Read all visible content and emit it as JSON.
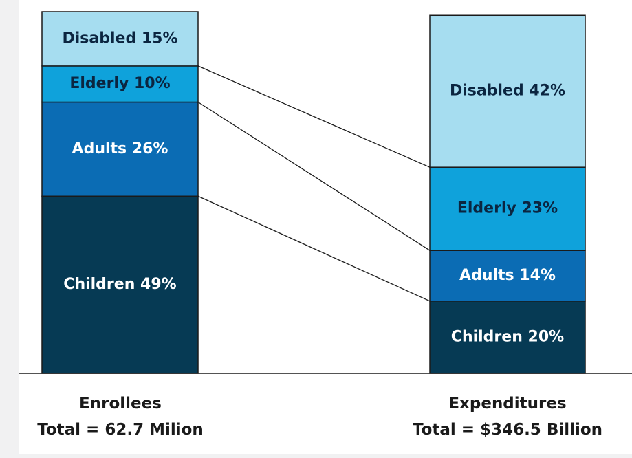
{
  "chart_data": {
    "type": "bar",
    "stacked": true,
    "normalized_percent": true,
    "categories": [
      "Enrollees",
      "Expenditures"
    ],
    "totals": [
      "Total = 62.7 Milion",
      "Total = $346.5 Billion"
    ],
    "series": [
      {
        "name": "Children",
        "values": [
          49,
          20
        ],
        "color": "#063a54",
        "text_color": "#ffffff"
      },
      {
        "name": "Adults",
        "values": [
          26,
          14
        ],
        "color": "#0b6cb4",
        "text_color": "#ffffff"
      },
      {
        "name": "Elderly",
        "values": [
          10,
          23
        ],
        "color": "#0fa2db",
        "text_color": "#0b2540"
      },
      {
        "name": "Disabled",
        "values": [
          15,
          42
        ],
        "color": "#a6ddf0",
        "text_color": "#0b2540"
      }
    ],
    "labels": [
      [
        "Children 49%",
        "Children 20%"
      ],
      [
        "Adults 26%",
        "Adults 14%"
      ],
      [
        "Elderly 10%",
        "Elderly 23%"
      ],
      [
        "Disabled 15%",
        "Disabled 42%"
      ]
    ],
    "ylim": [
      0,
      100
    ],
    "grid": false,
    "connector_lines": true
  }
}
